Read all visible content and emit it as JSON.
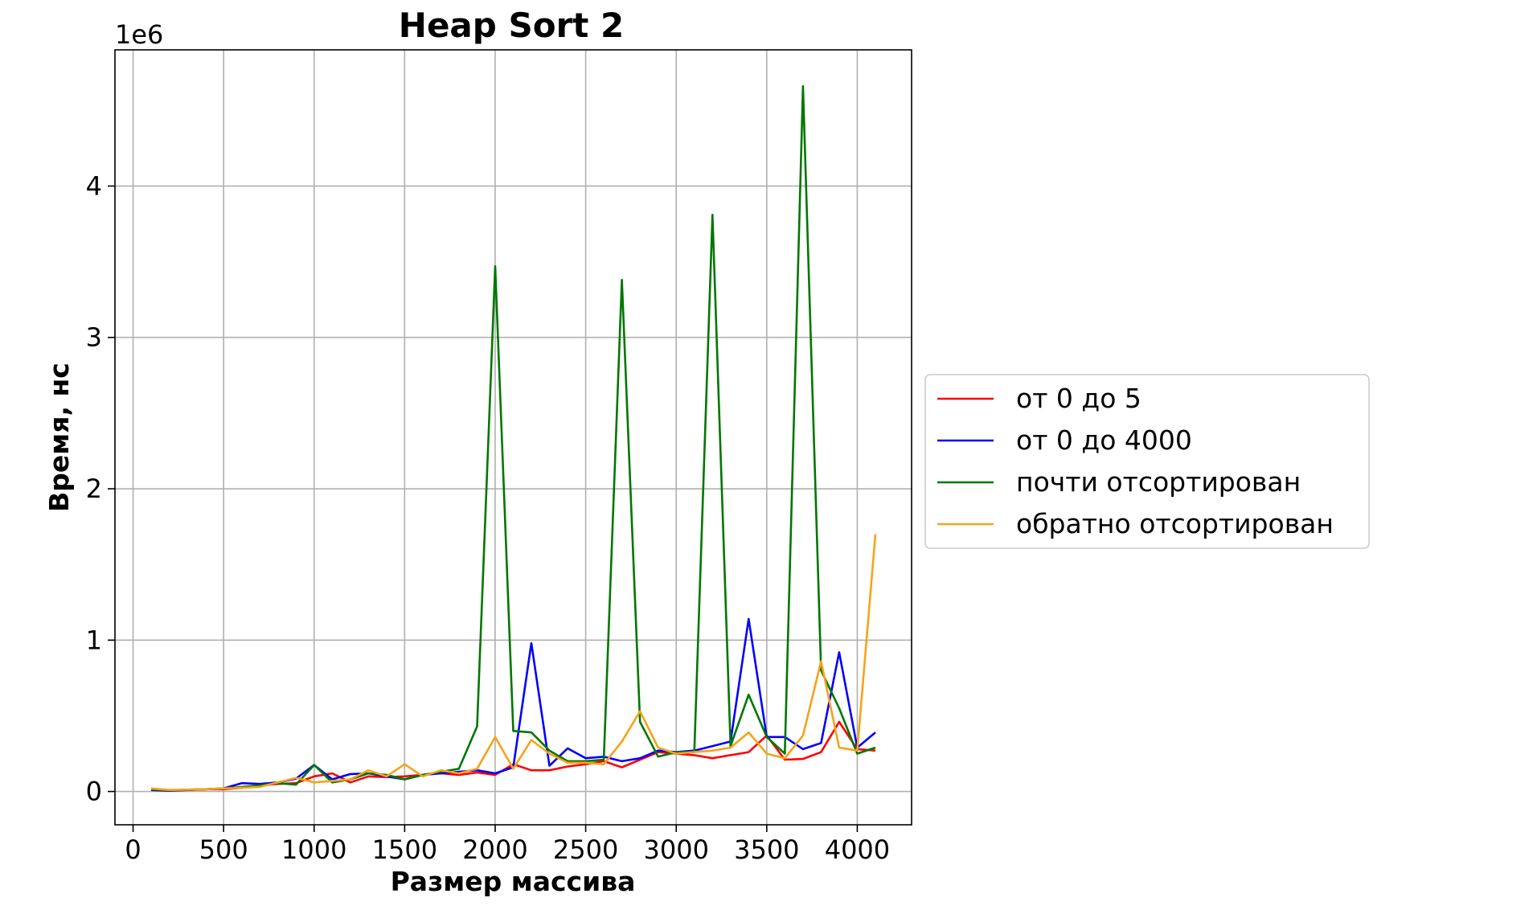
{
  "chart_data": {
    "type": "line",
    "title": "Heap Sort 2",
    "xlabel": "Размер массива",
    "ylabel": "Время, нс",
    "y_offset_label": "1e6",
    "xlim": [
      -100,
      4300
    ],
    "ylim": [
      -220000,
      4900000
    ],
    "x_ticks": [
      0,
      500,
      1000,
      1500,
      2000,
      2500,
      3000,
      3500,
      4000
    ],
    "x_tick_labels": [
      "0",
      "500",
      "1000",
      "1500",
      "2000",
      "2500",
      "3000",
      "3500",
      "4000"
    ],
    "y_ticks": [
      0,
      1000000,
      2000000,
      3000000,
      4000000
    ],
    "y_tick_labels": [
      "0",
      "1",
      "2",
      "3",
      "4"
    ],
    "grid": true,
    "legend_position": "center-right-outside",
    "x": [
      100,
      200,
      300,
      400,
      500,
      600,
      700,
      800,
      900,
      1000,
      1100,
      1200,
      1300,
      1400,
      1500,
      1600,
      1700,
      1800,
      1900,
      2000,
      2100,
      2200,
      2300,
      2400,
      2500,
      2600,
      2700,
      2800,
      2900,
      3000,
      3100,
      3200,
      3300,
      3400,
      3500,
      3600,
      3700,
      3800,
      3900,
      4000,
      4100
    ],
    "series": [
      {
        "name": "от 0 до 5",
        "color": "#ff0000",
        "values": [
          10000,
          5000,
          10000,
          15000,
          15000,
          25000,
          40000,
          50000,
          55000,
          100000,
          120000,
          60000,
          100000,
          95000,
          100000,
          110000,
          120000,
          110000,
          125000,
          110000,
          180000,
          140000,
          140000,
          165000,
          180000,
          200000,
          160000,
          210000,
          260000,
          250000,
          240000,
          220000,
          240000,
          260000,
          370000,
          210000,
          215000,
          260000,
          460000,
          280000,
          270000
        ]
      },
      {
        "name": "от 0 до 4000",
        "color": "#0000ff",
        "values": [
          10000,
          5000,
          10000,
          15000,
          20000,
          55000,
          50000,
          60000,
          85000,
          175000,
          80000,
          115000,
          120000,
          100000,
          80000,
          110000,
          120000,
          130000,
          140000,
          120000,
          160000,
          980000,
          170000,
          285000,
          220000,
          230000,
          200000,
          220000,
          270000,
          260000,
          270000,
          300000,
          330000,
          1140000,
          360000,
          360000,
          280000,
          320000,
          920000,
          290000,
          390000
        ]
      },
      {
        "name": "почти отсортирован",
        "color": "#007700",
        "values": [
          15000,
          8000,
          12000,
          15000,
          20000,
          30000,
          40000,
          55000,
          45000,
          175000,
          60000,
          80000,
          120000,
          110000,
          80000,
          110000,
          130000,
          150000,
          430000,
          3470000,
          400000,
          390000,
          270000,
          200000,
          200000,
          210000,
          3380000,
          460000,
          230000,
          260000,
          260000,
          3810000,
          300000,
          640000,
          360000,
          250000,
          4660000,
          800000,
          550000,
          250000,
          290000
        ]
      },
      {
        "name": "обратно отсортирован",
        "color": "#f5a31a",
        "values": [
          20000,
          10000,
          12000,
          15000,
          20000,
          25000,
          30000,
          60000,
          90000,
          60000,
          70000,
          80000,
          140000,
          100000,
          180000,
          100000,
          140000,
          120000,
          150000,
          360000,
          150000,
          340000,
          250000,
          190000,
          190000,
          180000,
          330000,
          530000,
          290000,
          250000,
          260000,
          270000,
          290000,
          390000,
          250000,
          220000,
          370000,
          860000,
          290000,
          270000,
          1700000
        ]
      }
    ]
  }
}
